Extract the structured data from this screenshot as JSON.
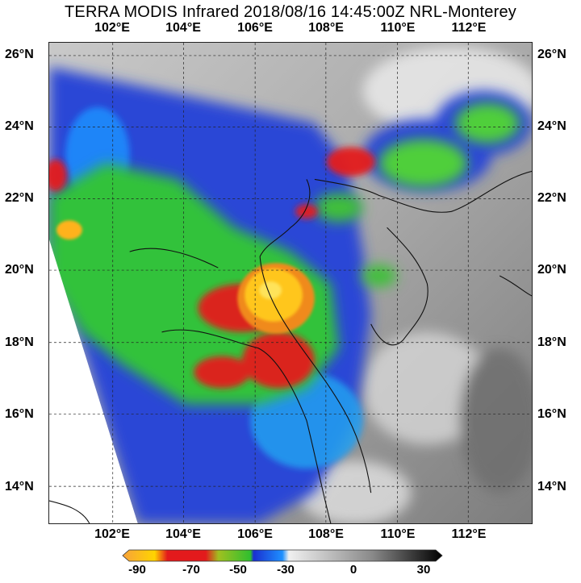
{
  "title": "TERRA MODIS Infrared 2018/08/16 14:45:00Z NRL-Monterey",
  "lon_labels": [
    "102°E",
    "104°E",
    "106°E",
    "108°E",
    "110°E",
    "112°E"
  ],
  "lat_labels": [
    "26°N",
    "24°N",
    "22°N",
    "20°N",
    "18°N",
    "16°N",
    "14°N"
  ],
  "colorbar": {
    "ticks": [
      "-90",
      "-70",
      "-50",
      "-30",
      "0",
      "30"
    ],
    "colors": [
      "#f7a23b",
      "#ffd400",
      "#e31a1c",
      "#a0c020",
      "#2fbf2f",
      "#1a2fd0",
      "#1e90ff",
      "#c8c8c8",
      "#5a5a5a",
      "#000000"
    ]
  },
  "imagery": {
    "type": "satellite-infrared",
    "storm_center": "19.2°N 106.6°E"
  }
}
